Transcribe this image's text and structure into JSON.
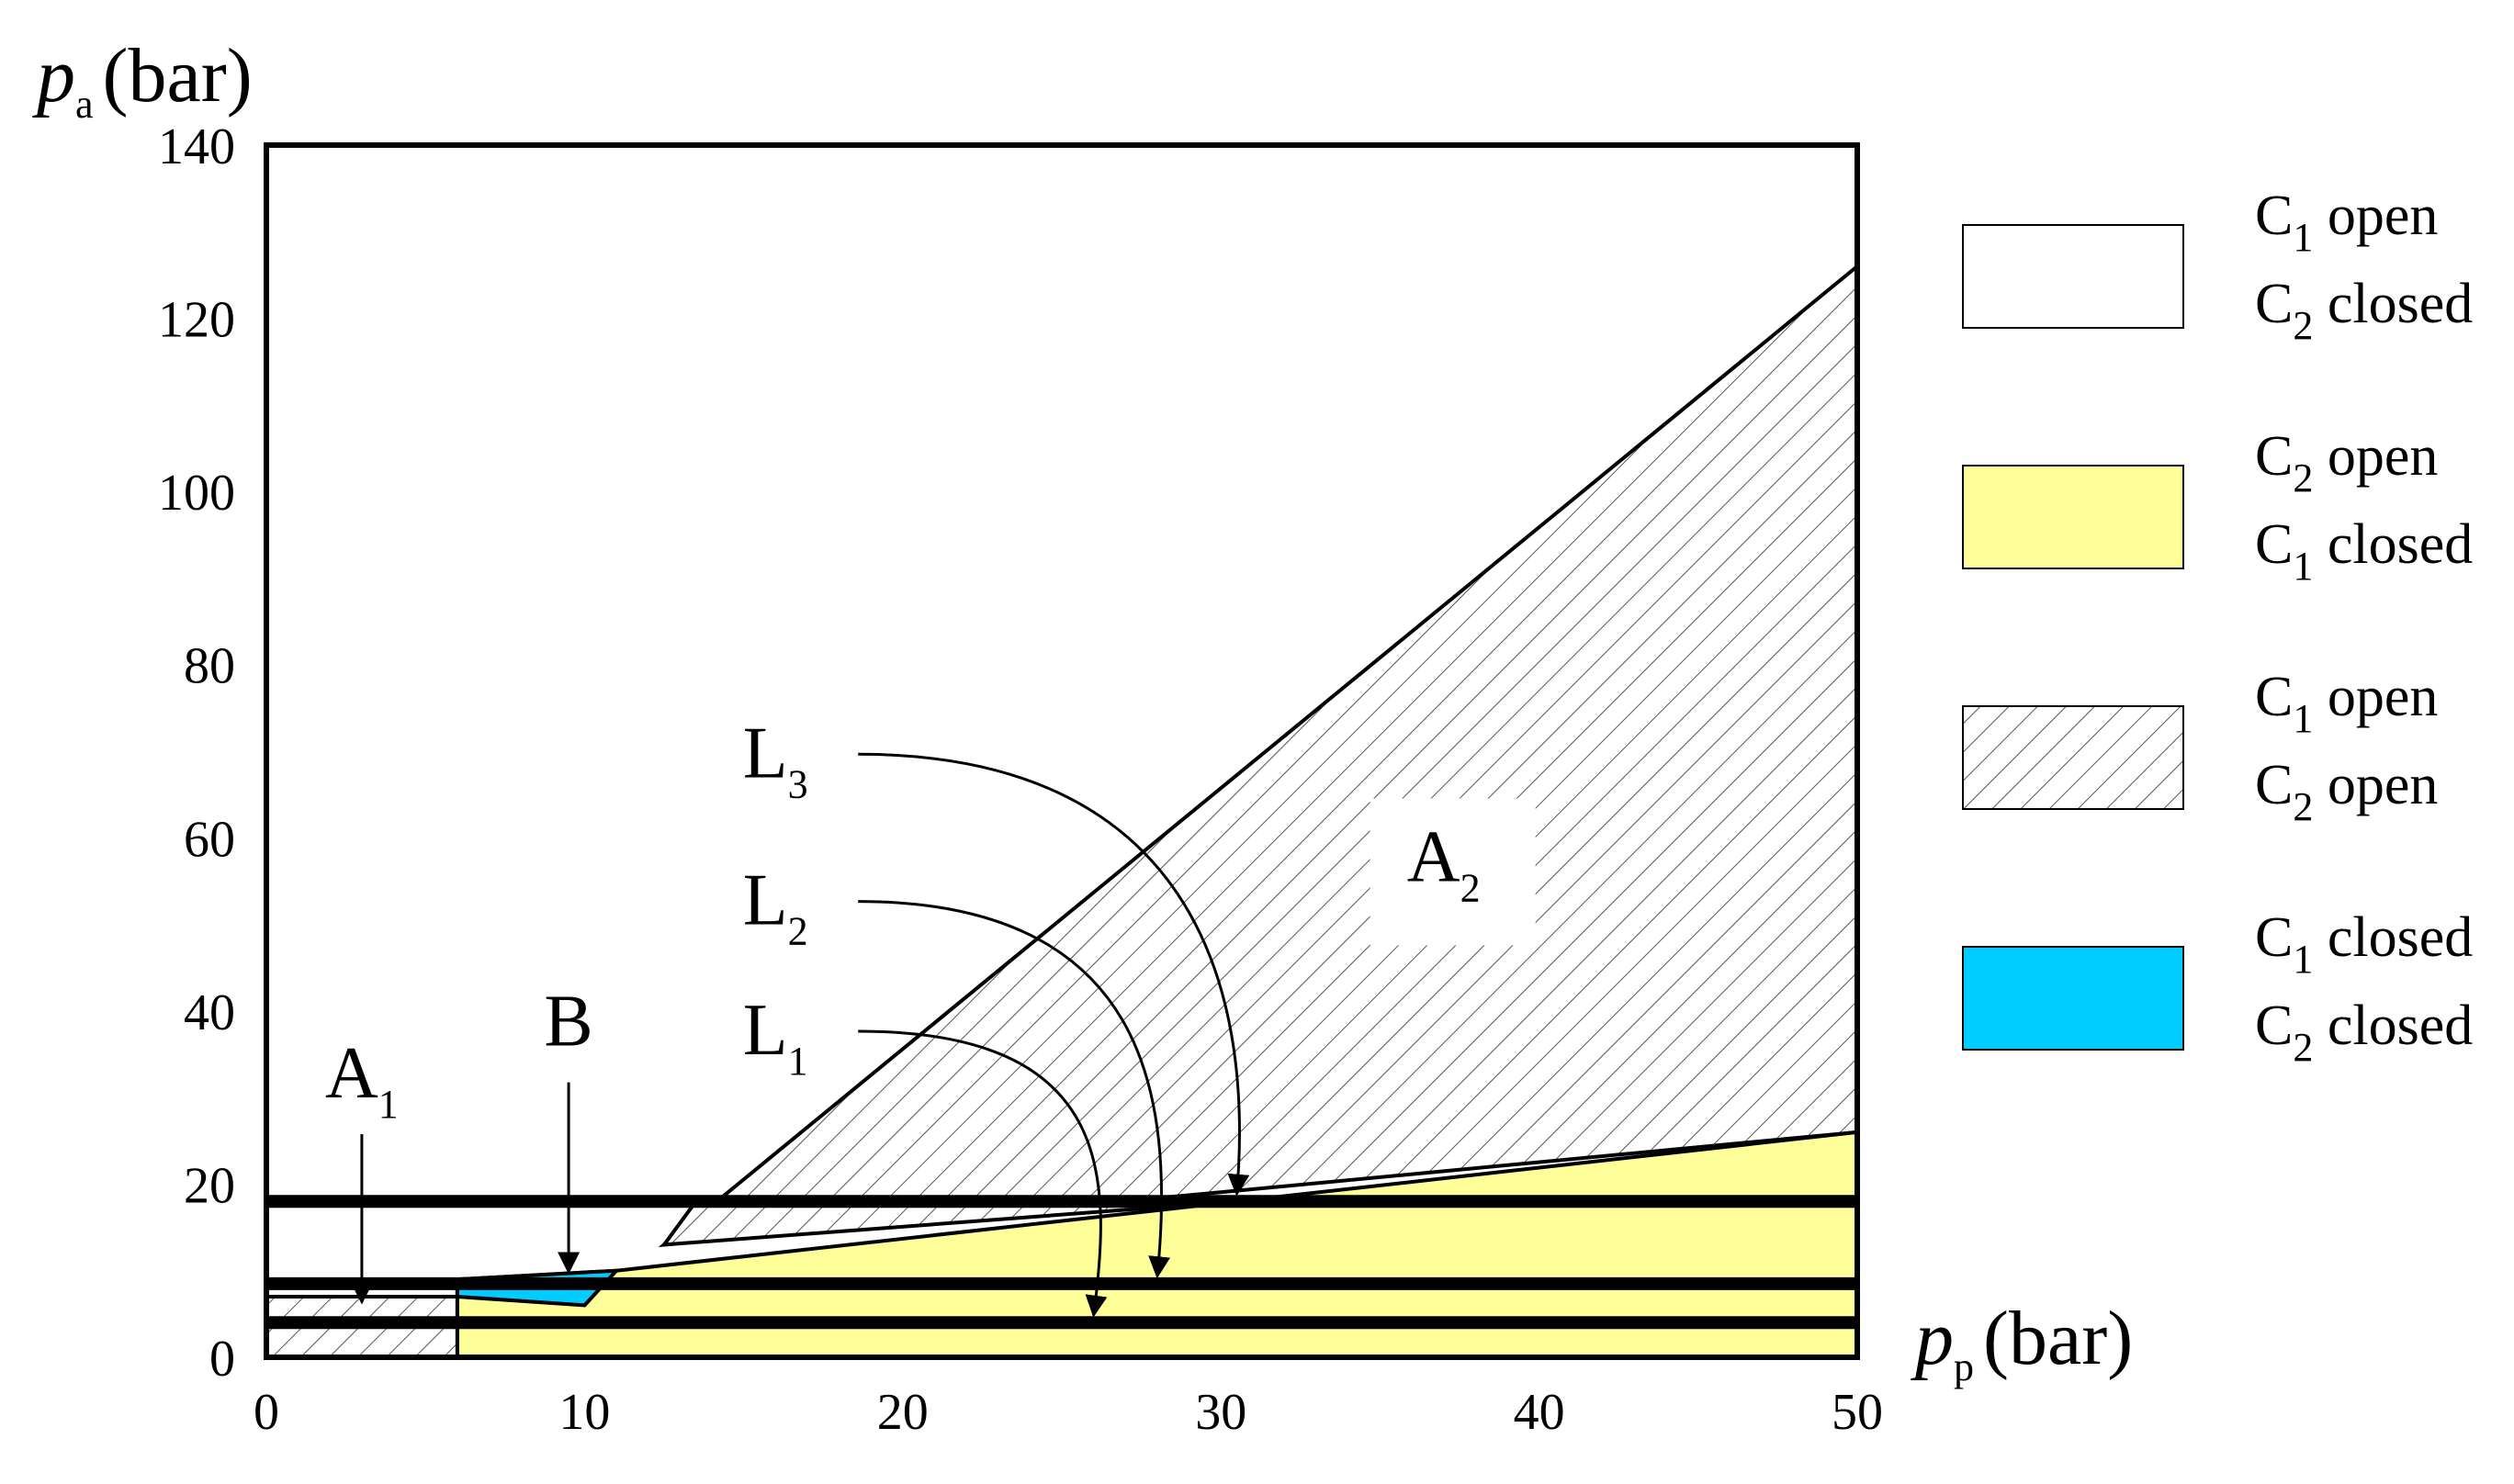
{
  "chart_data": {
    "type": "area",
    "title": "",
    "xlabel": {
      "symbol": "p",
      "subscript": "p",
      "unit": "(bar)"
    },
    "ylabel": {
      "symbol": "p",
      "subscript": "a",
      "unit": "(bar)"
    },
    "xlim": [
      0,
      50
    ],
    "ylim": [
      0,
      140
    ],
    "xticks": [
      0,
      10,
      20,
      30,
      40,
      50
    ],
    "yticks": [
      0,
      20,
      40,
      60,
      80,
      100,
      120,
      140
    ],
    "grid": false,
    "legend_position": "right",
    "colors": {
      "yellow": "#ffff99",
      "cyan": "#00ccff",
      "hatch": "#555555",
      "white": "#ffffff"
    },
    "legend": [
      {
        "swatch": "white",
        "line1": {
          "base": "C",
          "sub": "1",
          "text": " open"
        },
        "line2": {
          "base": "C",
          "sub": "2",
          "text": " closed"
        }
      },
      {
        "swatch": "yellow",
        "line1": {
          "base": "C",
          "sub": "2",
          "text": " open"
        },
        "line2": {
          "base": "C",
          "sub": "1",
          "text": " closed"
        }
      },
      {
        "swatch": "hatch",
        "line1": {
          "base": "C",
          "sub": "1",
          "text": " open"
        },
        "line2": {
          "base": "C",
          "sub": "2",
          "text": " open"
        }
      },
      {
        "swatch": "cyan",
        "line1": {
          "base": "C",
          "sub": "1",
          "text": " closed"
        },
        "line2": {
          "base": "C",
          "sub": "2",
          "text": " closed"
        }
      }
    ],
    "regions": [
      {
        "name": "A2",
        "fill": "hatch",
        "points": [
          [
            12.5,
            13
          ],
          [
            50,
            126
          ],
          [
            50,
            26
          ],
          [
            12.5,
            13
          ]
        ]
      },
      {
        "name": "A2-upper-band",
        "fill": "hatch",
        "points": [
          [
            13.5,
            18
          ],
          [
            30.5,
            18
          ],
          [
            12.5,
            13
          ]
        ]
      },
      {
        "name": "yellow",
        "fill": "yellow",
        "points": [
          [
            6,
            0
          ],
          [
            50,
            0
          ],
          [
            50,
            26
          ],
          [
            11,
            10
          ],
          [
            6,
            9
          ]
        ]
      },
      {
        "name": "B",
        "fill": "cyan",
        "points": [
          [
            6,
            9
          ],
          [
            11,
            10
          ],
          [
            10,
            6
          ],
          [
            6,
            7
          ]
        ]
      },
      {
        "name": "A1",
        "fill": "hatch",
        "points": [
          [
            0,
            0
          ],
          [
            6,
            0
          ],
          [
            6,
            7
          ],
          [
            0,
            7
          ]
        ]
      }
    ],
    "horizontal_lines": [
      {
        "name": "L3",
        "y": 18
      },
      {
        "name": "L2",
        "y": 8.5
      },
      {
        "name": "L1",
        "y": 4
      }
    ],
    "labels": [
      {
        "name": "A1",
        "base": "A",
        "sub": "1",
        "x": 3,
        "y": 30,
        "arrow_to": [
          3,
          5.5
        ]
      },
      {
        "name": "B",
        "base": "B",
        "sub": "",
        "x": 9.5,
        "y": 36,
        "arrow_to": [
          9.5,
          9
        ]
      },
      {
        "name": "L1",
        "base": "L",
        "sub": "1",
        "x": 16,
        "y": 35,
        "arrow_to": [
          26,
          4
        ]
      },
      {
        "name": "L2",
        "base": "L",
        "sub": "2",
        "x": 16,
        "y": 50,
        "arrow_to": [
          28,
          8.5
        ]
      },
      {
        "name": "L3",
        "base": "L",
        "sub": "3",
        "x": 16,
        "y": 67,
        "arrow_to": [
          30.5,
          18
        ]
      },
      {
        "name": "A2",
        "base": "A",
        "sub": "2",
        "x": 37,
        "y": 55,
        "arrow_to": null
      }
    ]
  }
}
